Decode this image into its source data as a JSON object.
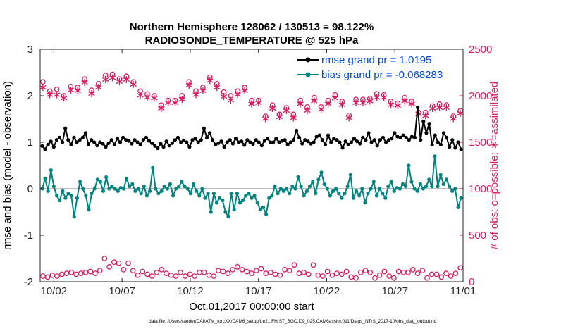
{
  "chart_data": {
    "type": "line",
    "title": "Northern Hemisphere 128062 / 130513 = 98.122%",
    "subtitle": "RADIOSONDE_TEMPERATURE @ 525 hPa",
    "xlabel": "Oct.01,2017 00:00:00 start",
    "ylabel_left": "rmse and bias (model - observation)",
    "ylabel_right": "# of obs: o=possible; ∗=assimilated",
    "footnote": "data file: /Users/raeder/DAI/ATM_forcXX/CAM6_setup/f.e21.FHIST_BGC.f09_025.CAM6assim.011/Diags_NTrS_2017-10/obs_diag_output.nc",
    "x_range_days": [
      0,
      31
    ],
    "ylim_left": [
      -2,
      3
    ],
    "ylim_right": [
      0,
      2500
    ],
    "xticks": [
      {
        "day": 1,
        "label": "10/02"
      },
      {
        "day": 6,
        "label": "10/07"
      },
      {
        "day": 11,
        "label": "10/12"
      },
      {
        "day": 16,
        "label": "10/17"
      },
      {
        "day": 21,
        "label": "10/22"
      },
      {
        "day": 26,
        "label": "10/27"
      },
      {
        "day": 31,
        "label": "11/01"
      }
    ],
    "yticks_left": [
      "-2",
      "-1",
      "0",
      "1",
      "2",
      "3"
    ],
    "yticks_right": [
      "0",
      "500",
      "1000",
      "1500",
      "2000",
      "2500"
    ],
    "legend_position": "top-right",
    "colors": {
      "rmse": "#000000",
      "bias": "#00847f",
      "obs": "#d81b60",
      "zero_line": "#bdbdbd",
      "legend_text": "#0047e8"
    },
    "series": [
      {
        "name": "rmse grand pr = 1.0195",
        "axis": "left",
        "values": [
          0.92,
          0.85,
          0.95,
          1.02,
          0.9,
          1.05,
          1.1,
          1.0,
          1.3,
          1.05,
          0.95,
          1.1,
          1.0,
          1.05,
          1.1,
          1.2,
          0.95,
          1.05,
          1.0,
          0.93,
          1.0,
          0.97,
          0.9,
          0.98,
          1.05,
          0.95,
          1.08,
          1.0,
          1.1,
          1.05,
          1.03,
          0.97,
          1.05,
          1.0,
          0.95,
          1.05,
          1.1,
          1.03,
          0.98,
          0.92,
          0.87,
          0.97,
          0.9,
          1.02,
          0.93,
          0.98,
          1.05,
          1.1,
          1.0,
          1.04,
          1.0,
          0.9,
          1.05,
          1.08,
          1.0,
          1.05,
          1.3,
          1.1,
          1.2,
          1.05,
          0.95,
          0.98,
          1.02,
          0.9,
          1.0,
          1.05,
          0.97,
          1.08,
          1.0,
          1.02,
          0.94,
          1.05,
          1.0,
          0.96,
          1.05,
          1.0,
          0.93,
          1.03,
          1.08,
          1.0,
          1.0,
          1.08,
          1.0,
          1.03,
          1.05,
          0.95,
          1.0,
          1.05,
          1.25,
          1.1,
          0.97,
          1.05,
          1.02,
          0.97,
          1.0,
          1.12,
          1.15,
          1.05,
          0.95,
          1.15,
          1.0,
          1.08,
          1.05,
          1.0,
          0.88,
          1.02,
          0.95,
          1.0,
          1.08,
          1.02,
          0.97,
          1.1,
          1.05,
          1.2,
          1.0,
          1.05,
          0.93,
          1.05,
          1.1,
          1.0,
          1.05,
          1.08,
          1.2,
          1.12,
          1.1,
          1.15,
          1.1,
          1.05,
          1.12,
          1.1,
          1.75,
          1.05,
          1.45,
          1.2,
          1.4,
          0.95,
          1.15,
          1.0,
          0.95,
          1.2,
          1.1,
          0.9,
          1.05,
          0.88,
          1.0,
          0.85
        ]
      },
      {
        "name": "bias grand pr = -0.068283",
        "axis": "left",
        "values": [
          0.0,
          0.22,
          -0.05,
          0.4,
          0.05,
          -0.15,
          -0.25,
          -0.05,
          -0.2,
          -0.1,
          -0.15,
          -0.6,
          -0.2,
          0.15,
          0.0,
          -0.15,
          -0.45,
          -0.1,
          0.0,
          0.2,
          0.15,
          -0.05,
          0.25,
          0.0,
          0.05,
          0.0,
          -0.05,
          0.02,
          0.0,
          0.22,
          0.05,
          0.1,
          -0.05,
          0.0,
          -0.1,
          0.05,
          -0.15,
          -0.05,
          0.45,
          0.0,
          -0.1,
          -0.05,
          0.05,
          0.0,
          0.1,
          -0.15,
          0.0,
          0.05,
          0.15,
          0.05,
          0.0,
          -0.1,
          0.1,
          -0.05,
          -0.15,
          0.0,
          -0.2,
          -0.1,
          -0.5,
          -0.1,
          -0.3,
          -0.2,
          -0.25,
          -0.5,
          -0.6,
          -0.1,
          -0.45,
          -0.1,
          -0.3,
          -0.25,
          -0.15,
          -0.1,
          -0.2,
          -0.15,
          -0.3,
          -0.45,
          -0.4,
          -0.55,
          -0.2,
          -0.15,
          0.05,
          -0.1,
          0.0,
          -0.05,
          0.0,
          -0.1,
          0.05,
          0.0,
          0.25,
          0.05,
          -0.15,
          -0.05,
          0.05,
          0.15,
          -0.1,
          0.2,
          0.35,
          0.1,
          0.0,
          -0.15,
          -0.05,
          0.0,
          -0.1,
          -0.2,
          -0.1,
          0.05,
          0.3,
          -0.2,
          -0.05,
          -0.15,
          0.0,
          -0.3,
          -0.1,
          0.0,
          0.15,
          -0.15,
          0.0,
          -0.1,
          -0.2,
          0.05,
          0.15,
          -0.05,
          0.02,
          0.0,
          0.1,
          0.05,
          0.5,
          0.15,
          0.0,
          -0.05,
          0.1,
          0.0,
          0.05,
          0.2,
          0.05,
          0.7,
          0.05,
          0.3,
          0.1,
          0.2,
          0.05,
          -0.05,
          0.0,
          -0.4,
          -0.2
        ]
      },
      {
        "name": "possible",
        "axis": "right",
        "marker": "o",
        "values": [
          2150,
          2050,
          2070,
          2000,
          2100,
          2090,
          2180,
          2060,
          2130,
          2220,
          2230,
          2180,
          2210,
          2150,
          2050,
          2020,
          2000,
          1900,
          1950,
          1950,
          2000,
          2150,
          2050,
          2090,
          2200,
          2130,
          2040,
          2000,
          2050,
          2090,
          1950,
          1950,
          1780,
          1900,
          1800,
          1870,
          1800,
          1950,
          1880,
          1980,
          1880,
          1950,
          2010,
          1940,
          1790,
          1960,
          1960,
          1970,
          2020,
          2010,
          1940,
          1920,
          1980,
          1940,
          1820,
          1820,
          1890,
          1910,
          1900,
          1780,
          1840
        ]
      },
      {
        "name": "assimilated",
        "axis": "right",
        "marker": "∗",
        "values": [
          2100,
          2020,
          2020,
          1980,
          2070,
          2060,
          2150,
          2030,
          2100,
          2180,
          2200,
          2160,
          2180,
          2130,
          2010,
          1990,
          1980,
          1870,
          1930,
          1930,
          1970,
          2120,
          2020,
          2060,
          2170,
          2100,
          2000,
          1960,
          2020,
          2060,
          1920,
          1930,
          1760,
          1870,
          1780,
          1850,
          1770,
          1920,
          1850,
          1950,
          1860,
          1920,
          1980,
          1910,
          1770,
          1930,
          1930,
          1950,
          1990,
          1990,
          1910,
          1900,
          1950,
          1920,
          1810,
          1790,
          1870,
          1880,
          1880,
          1760,
          1820
        ]
      },
      {
        "name": "possible_low",
        "axis": "right",
        "marker": "o",
        "values": [
          60,
          50,
          70,
          60,
          80,
          90,
          100,
          80,
          90,
          100,
          110,
          90,
          120,
          250,
          160,
          210,
          200,
          130,
          200,
          120,
          70,
          110,
          80,
          60,
          100,
          130,
          90,
          70,
          60,
          100,
          60,
          80,
          60,
          100,
          100,
          70,
          60,
          120,
          110,
          90,
          130,
          160,
          130,
          110,
          90,
          120,
          140,
          90,
          100,
          80,
          70,
          130,
          120,
          180,
          90,
          100,
          80,
          180,
          70,
          60,
          110,
          70,
          90,
          80,
          110,
          50,
          40,
          100,
          120,
          100,
          40,
          70,
          110,
          60,
          40,
          110,
          100,
          100,
          130,
          90,
          120,
          40,
          80,
          80,
          50,
          90,
          60,
          90,
          150
        ]
      }
    ]
  }
}
